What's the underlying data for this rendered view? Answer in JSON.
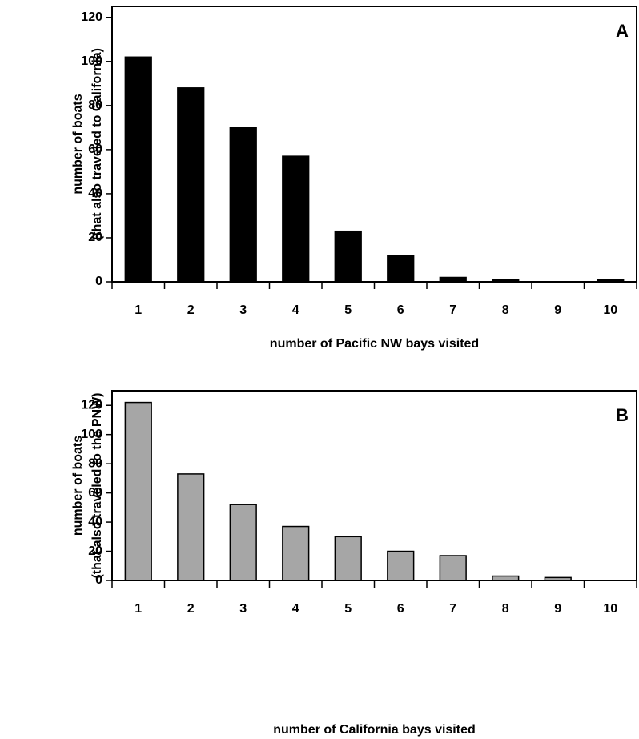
{
  "chart_data": [
    {
      "type": "bar",
      "annotation": "A",
      "xlabel": "number of Pacific NW bays visited",
      "ylabel": [
        "number of boats",
        "(that also traveled to California)"
      ],
      "categories": [
        "1",
        "2",
        "3",
        "4",
        "5",
        "6",
        "7",
        "8",
        "9",
        "10"
      ],
      "values": [
        102,
        88,
        70,
        57,
        23,
        12,
        2,
        1,
        0,
        1
      ],
      "color": "#000000",
      "ylim": [
        0,
        125
      ],
      "yticks": [
        0,
        20,
        40,
        60,
        80,
        100,
        120
      ],
      "grid": false
    },
    {
      "type": "bar",
      "annotation": "B",
      "xlabel": "number of California bays visited",
      "ylabel": [
        "number of boats",
        "(that also traveled to the PNW)"
      ],
      "categories": [
        "1",
        "2",
        "3",
        "4",
        "5",
        "6",
        "7",
        "8",
        "9",
        "10"
      ],
      "values": [
        122,
        73,
        52,
        37,
        30,
        20,
        17,
        3,
        2,
        0
      ],
      "color": "#a6a6a6",
      "ylim": [
        0,
        130
      ],
      "yticks": [
        0,
        20,
        40,
        60,
        80,
        100,
        120
      ],
      "grid": false
    }
  ]
}
